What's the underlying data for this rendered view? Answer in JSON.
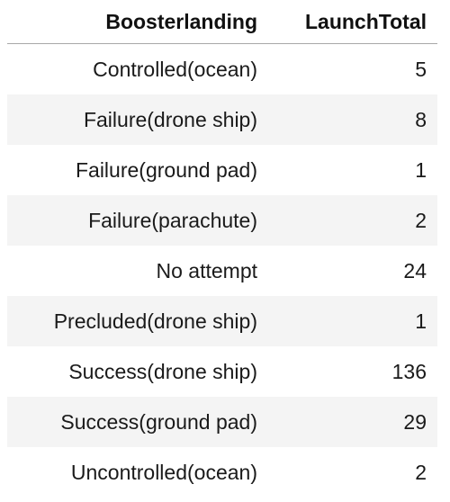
{
  "table": {
    "columns": [
      "Boosterlanding",
      "LaunchTotal"
    ],
    "rows": [
      {
        "landing": "Controlled(ocean)",
        "total": "5"
      },
      {
        "landing": "Failure(drone ship)",
        "total": "8"
      },
      {
        "landing": "Failure(ground pad)",
        "total": "1"
      },
      {
        "landing": "Failure(parachute)",
        "total": "2"
      },
      {
        "landing": "No attempt",
        "total": "24"
      },
      {
        "landing": "Precluded(drone ship)",
        "total": "1"
      },
      {
        "landing": "Success(drone ship)",
        "total": "136"
      },
      {
        "landing": "Success(ground pad)",
        "total": "29"
      },
      {
        "landing": "Uncontrolled(ocean)",
        "total": "2"
      }
    ]
  }
}
